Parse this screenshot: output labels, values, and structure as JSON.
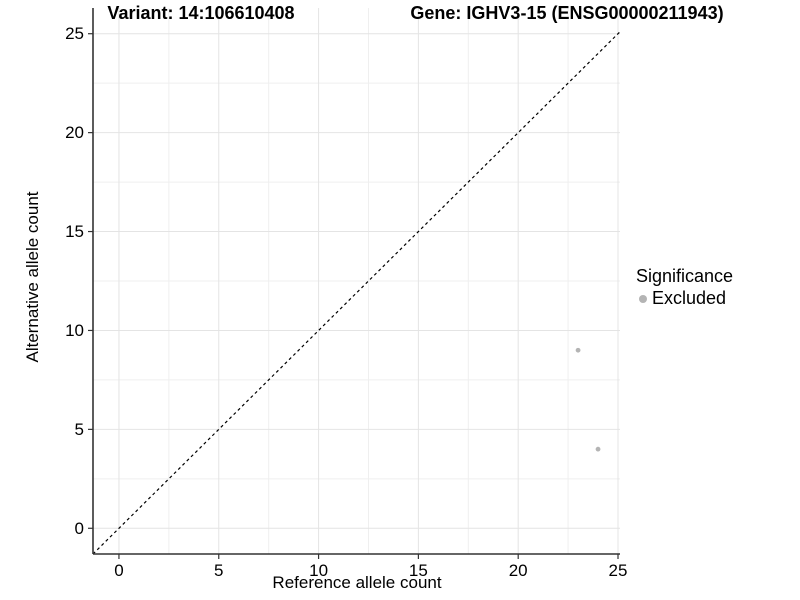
{
  "titles": {
    "variant": "Variant: 14:106610408",
    "gene": "Gene: IGHV3-15 (ENSG00000211943)"
  },
  "chart_data": {
    "type": "scatter",
    "title_left": "Variant: 14:106610408",
    "title_right": "Gene: IGHV3-15 (ENSG00000211943)",
    "xlabel": "Reference allele count",
    "ylabel": "Alternative allele count",
    "xlim": [
      -1.3,
      25.1
    ],
    "ylim": [
      -1.3,
      26.3
    ],
    "x_ticks": [
      0,
      5,
      10,
      15,
      20,
      25
    ],
    "y_ticks": [
      0,
      5,
      10,
      15,
      20,
      25
    ],
    "x_minor_ticks": [
      2.5,
      7.5,
      12.5,
      17.5,
      22.5
    ],
    "y_minor_ticks": [
      2.5,
      7.5,
      12.5,
      17.5,
      22.5
    ],
    "grid": "major+minor",
    "series": [
      {
        "name": "Excluded",
        "color": "#b4b4b4",
        "points": [
          [
            23,
            9
          ],
          [
            24,
            4
          ]
        ]
      }
    ],
    "reference_line": {
      "type": "identity",
      "style": "dashed",
      "color": "#000000"
    },
    "legend": {
      "title": "Significance",
      "position": "right",
      "entries": [
        {
          "label": "Excluded",
          "color": "#b4b4b4"
        }
      ]
    }
  },
  "colors": {
    "background": "#ffffff",
    "major_grid": "#e4e4e4",
    "minor_grid": "#efefef",
    "axis_line": "#333333",
    "tick": "#333333",
    "text": "#000000",
    "point": "#b4b4b4",
    "dashed_line": "#000000"
  }
}
